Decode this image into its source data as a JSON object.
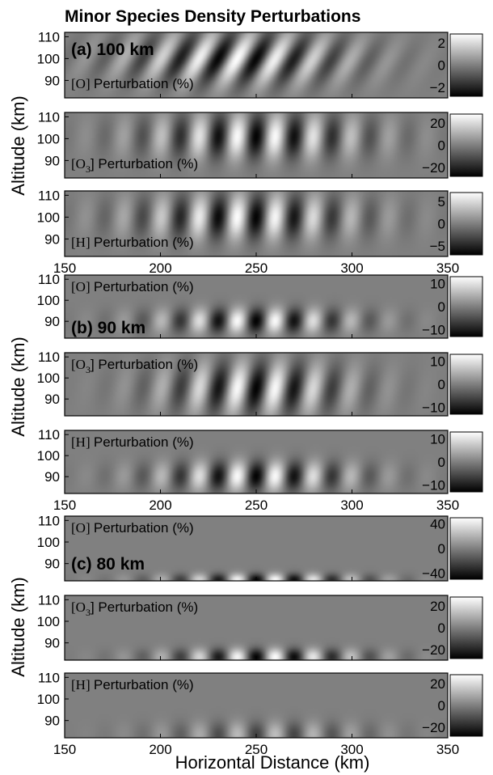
{
  "chart_data": {
    "title": "Minor Species Density Perturbations",
    "xlabel": "Horizontal Distance (km)",
    "ylabel": "Altitude (km)",
    "colormap": "gray",
    "xlim": [
      150,
      350
    ],
    "xticks": [
      "150",
      "200",
      "250",
      "300",
      "350"
    ],
    "ylim": [
      82,
      112
    ],
    "yticks": [
      "110",
      "100",
      "90"
    ],
    "groups": [
      {
        "label": "(a) 100 km",
        "panels": [
          {
            "type": "heatmap",
            "species": "[O] Perturbation (%)",
            "sub": "",
            "clim": [
              -2.8,
              2.8
            ],
            "cticks": [
              "2",
              "0",
              "−2"
            ],
            "field": {
              "center_x": 240,
              "half_width": 60,
              "wavelength": 20,
              "z_center": 100,
              "z_width": 12,
              "amp_db": 1,
              "tilt": 0.6
            }
          },
          {
            "type": "heatmap",
            "species": "[O",
            "subscript": "3",
            "suffix": "] Perturbation (%)",
            "clim": [
              -28,
              28
            ],
            "cticks": [
              "20",
              "0",
              "−20"
            ],
            "field": {
              "center_x": 250,
              "half_width": 60,
              "wavelength": 20,
              "z_center": 101,
              "z_width": 10,
              "amp_db": 1,
              "tilt": 0.1
            }
          },
          {
            "type": "heatmap",
            "species": "[H] Perturbation (%)",
            "sub": "",
            "clim": [
              -7,
              7
            ],
            "cticks": [
              "5",
              "0",
              "−5"
            ],
            "field": {
              "center_x": 245,
              "half_width": 60,
              "wavelength": 20,
              "z_center": 100,
              "z_width": 10,
              "amp_db": 1,
              "tilt": 0.1
            }
          }
        ]
      },
      {
        "label": "(b) 90 km",
        "panels": [
          {
            "type": "heatmap",
            "species": "[O] Perturbation (%)",
            "sub": "",
            "clim": [
              -13,
              13
            ],
            "cticks": [
              "10",
              "0",
              "−10"
            ],
            "field": {
              "center_x": 250,
              "half_width": 55,
              "wavelength": 20,
              "z_center": 90,
              "z_width": 6,
              "amp_db": 1,
              "tilt": 0.1
            }
          },
          {
            "type": "heatmap",
            "species": "[O",
            "subscript": "3",
            "suffix": "] Perturbation (%)",
            "clim": [
              -13,
              13
            ],
            "cticks": [
              "10",
              "0",
              "−10"
            ],
            "field": {
              "center_x": 250,
              "half_width": 50,
              "wavelength": 20,
              "z_center": 95,
              "z_width": 12,
              "amp_db": 1,
              "tilt": 0.2
            }
          },
          {
            "type": "heatmap",
            "species": "[H] Perturbation (%)",
            "sub": "",
            "clim": [
              -13,
              13
            ],
            "cticks": [
              "10",
              "0",
              "−10"
            ],
            "field": {
              "center_x": 250,
              "half_width": 55,
              "wavelength": 20,
              "z_center": 90,
              "z_width": 7,
              "amp_db": 1,
              "tilt": 0.1
            }
          }
        ]
      },
      {
        "label": "(c) 80 km",
        "panels": [
          {
            "type": "heatmap",
            "species": "[O] Perturbation (%)",
            "sub": "",
            "clim": [
              -50,
              50
            ],
            "cticks": [
              "40",
              "0",
              "−40"
            ],
            "field": {
              "center_x": 255,
              "half_width": 55,
              "wavelength": 20,
              "z_center": 82,
              "z_width": 3,
              "amp_db": 1,
              "tilt": 0.0
            }
          },
          {
            "type": "heatmap",
            "species": "[O",
            "subscript": "3",
            "suffix": "] Perturbation (%)",
            "clim": [
              -28,
              28
            ],
            "cticks": [
              "20",
              "0",
              "−20"
            ],
            "field": {
              "center_x": 255,
              "half_width": 55,
              "wavelength": 20,
              "z_center": 83,
              "z_width": 4,
              "amp_db": 1,
              "tilt": 0.0
            }
          },
          {
            "type": "heatmap",
            "species": "[H] Perturbation (%)",
            "sub": "",
            "clim": [
              -28,
              28
            ],
            "cticks": [
              "20",
              "0",
              "−20"
            ],
            "field": {
              "center_x": 255,
              "half_width": 55,
              "wavelength": 20,
              "z_center": 83,
              "z_width": 6,
              "amp_db": 0.5,
              "tilt": 0.0
            }
          }
        ]
      }
    ]
  }
}
